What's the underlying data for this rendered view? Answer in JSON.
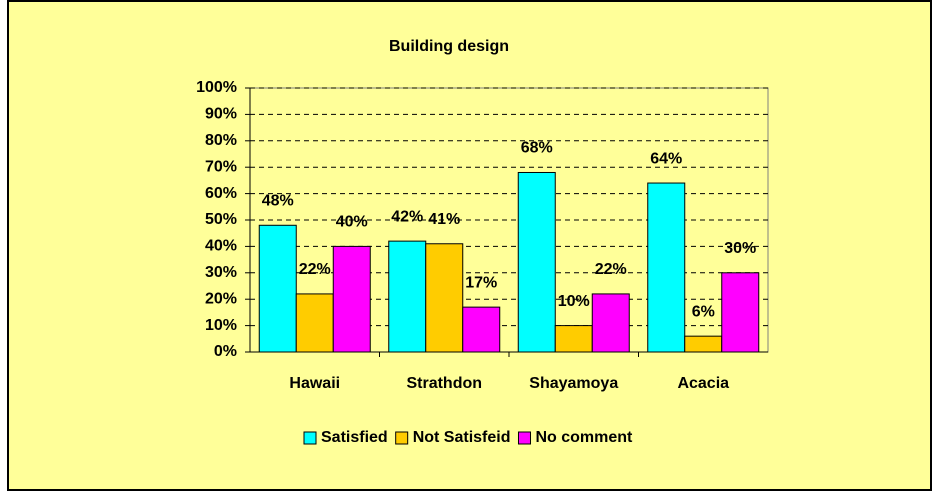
{
  "chart_data": {
    "type": "bar",
    "title": "Building design",
    "categories": [
      "Hawaii",
      "Strathdon",
      "Shayamoya",
      "Acacia"
    ],
    "series": [
      {
        "name": "Satisfied",
        "color": "#00ffff",
        "values": [
          48,
          42,
          68,
          64
        ],
        "value_labels": [
          "48%",
          "42%",
          "68%",
          "64%"
        ]
      },
      {
        "name": "Not Satisfeid",
        "color": "#ffcc00",
        "values": [
          22,
          41,
          10,
          6
        ],
        "value_labels": [
          "22%",
          "41%",
          "10%",
          "6%"
        ]
      },
      {
        "name": "No comment",
        "color": "#ff00ff",
        "values": [
          40,
          17,
          22,
          30
        ],
        "value_labels": [
          "40%",
          "17%",
          "22%",
          "30%"
        ]
      }
    ],
    "ylim": [
      0,
      100
    ],
    "yticks": [
      {
        "value": 0,
        "label": "0%"
      },
      {
        "value": 10,
        "label": "10%"
      },
      {
        "value": 20,
        "label": "20%"
      },
      {
        "value": 30,
        "label": "30%"
      },
      {
        "value": 40,
        "label": "40%"
      },
      {
        "value": 50,
        "label": "50%"
      },
      {
        "value": 60,
        "label": "60%"
      },
      {
        "value": 70,
        "label": "70%"
      },
      {
        "value": 80,
        "label": "80%"
      },
      {
        "value": 90,
        "label": "90%"
      },
      {
        "value": 100,
        "label": "100%"
      }
    ],
    "grid": true,
    "legend": "bottom"
  }
}
